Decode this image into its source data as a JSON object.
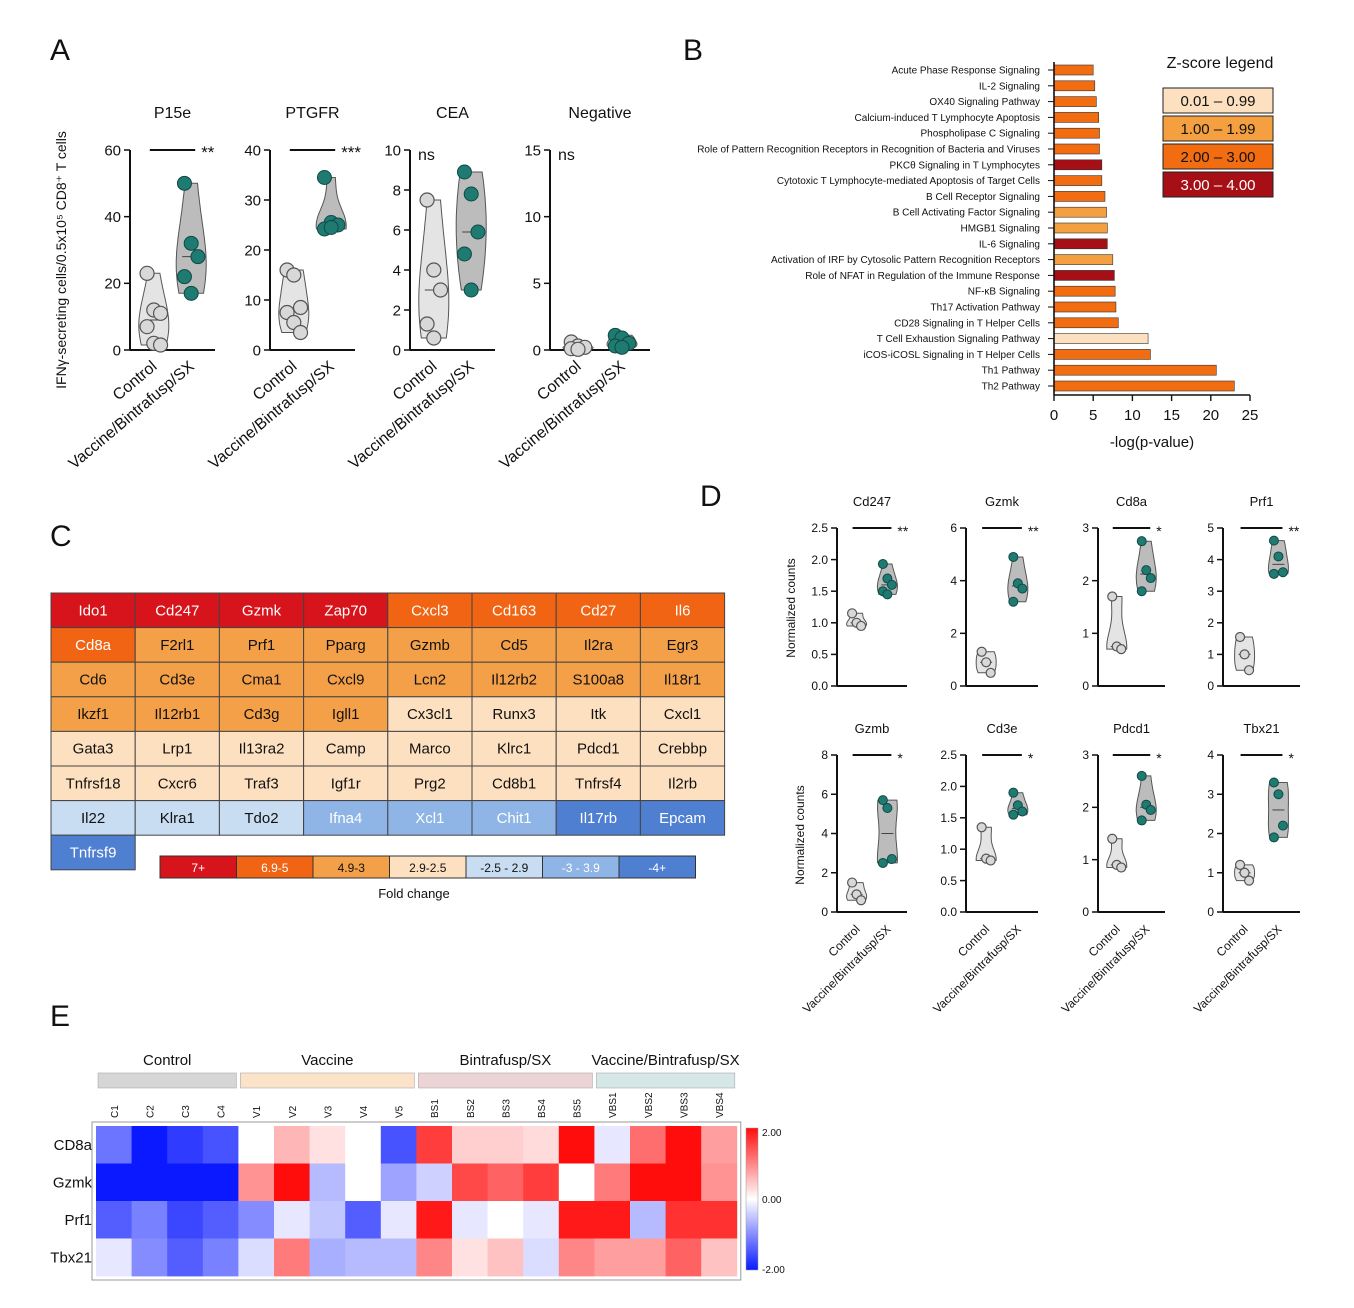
{
  "panel_labels": {
    "a": "A",
    "b": "B",
    "c": "C",
    "d": "D",
    "e": "E"
  },
  "colors": {
    "violin_control": "#e4e4e4",
    "violin_treat": "#bcbcbc",
    "dot_control": "#d8d8d8",
    "dot_treat": "#1f7a72",
    "z1": "#fde0bf",
    "z2": "#f5a040",
    "z3": "#f26c12",
    "z4": "#a50f15",
    "fc_7": "#d7141b",
    "fc_6": "#f06414",
    "fc_4": "#f4a049",
    "fc_2": "#fde0c0",
    "fc_n2": "#c8dcf2",
    "fc_n3": "#8fb4e6",
    "fc_n4": "#4f7fd0"
  },
  "chart_data": [
    {
      "id": "A",
      "type": "scatter",
      "ylabel": "IFNγ-secreting cells/0.5x10⁵ CD8⁺ T cells",
      "categories": [
        "Control",
        "Vaccine/Bintrafusp/SX"
      ],
      "subplots": [
        {
          "title": "P15e",
          "ylim": [
            0,
            60
          ],
          "ticks": [
            0,
            20,
            40,
            60
          ],
          "sig": "**",
          "control": [
            23,
            12,
            11,
            7,
            2,
            1.5
          ],
          "treat": [
            50,
            32,
            28,
            22,
            17
          ]
        },
        {
          "title": "PTGFR",
          "ylim": [
            0,
            40
          ],
          "ticks": [
            0,
            10,
            20,
            30,
            40
          ],
          "sig": "***",
          "control": [
            16,
            15,
            8.5,
            7.5,
            5.5,
            3.5
          ],
          "treat": [
            34.5,
            25.5,
            25,
            24.2,
            24.5
          ]
        },
        {
          "title": "CEA",
          "ylim": [
            0,
            10
          ],
          "ticks": [
            0,
            2,
            4,
            6,
            8,
            10
          ],
          "sig": "ns",
          "control": [
            7.5,
            4,
            3,
            1.3,
            0.6
          ],
          "treat": [
            8.9,
            7.8,
            5.9,
            4.8,
            3
          ]
        },
        {
          "title": "Negative",
          "ylim": [
            0,
            15
          ],
          "ticks": [
            0,
            5,
            10,
            15
          ],
          "sig": "ns",
          "control": [
            0.6,
            0.3,
            0.2,
            0.1,
            0.05
          ],
          "treat": [
            1.1,
            0.9,
            0.5,
            0.3,
            0.2
          ]
        }
      ]
    },
    {
      "id": "B",
      "type": "bar",
      "orientation": "horizontal",
      "xlabel": "-log(p-value)",
      "xlim": [
        0,
        25
      ],
      "ticks": [
        0,
        5,
        10,
        15,
        20,
        25
      ],
      "legend_title": "Z-score legend",
      "legend": [
        {
          "label": "0.01 – 0.99",
          "z": 1
        },
        {
          "label": "1.00 – 1.99",
          "z": 2
        },
        {
          "label": "2.00 – 3.00",
          "z": 3
        },
        {
          "label": "3.00 – 4.00",
          "z": 4
        }
      ],
      "categories": [
        "Acute Phase Response Signaling",
        "IL-2 Signaling",
        "OX40 Signaling Pathway",
        "Calcium-induced T Lymphocyte Apoptosis",
        "Phospholipase C Signaling",
        "Role of Pattern Recognition Receptors in Recognition of Bacteria and Viruses",
        "PKCθ Signaling in T Lymphocytes",
        "Cytotoxic T Lymphocyte-mediated Apoptosis of Target Cells",
        "B Cell Receptor Signaling",
        "B Cell Activating Factor Signaling",
        "HMGB1 Signaling",
        "IL-6 Signaling",
        "Activation of IRF by Cytosolic Pattern Recognition Receptors",
        "Role of NFAT in Regulation of the Immune Response",
        "NF-κB Signaling",
        "Th17 Activation Pathway",
        "CD28 Signaling in T Helper Cells",
        "T Cell Exhaustion Signaling Pathway",
        "iCOS-iCOSL Signaling in T Helper Cells",
        "Th1 Pathway",
        "Th2 Pathway"
      ],
      "values": [
        5.0,
        5.2,
        5.4,
        5.7,
        5.8,
        5.8,
        6.1,
        6.1,
        6.5,
        6.7,
        6.8,
        6.8,
        7.5,
        7.7,
        7.8,
        7.9,
        8.2,
        12.0,
        12.3,
        20.7,
        23.0
      ],
      "zscore": [
        3,
        3,
        3,
        3,
        3,
        3,
        4,
        3,
        3,
        2,
        2,
        4,
        2,
        4,
        3,
        3,
        3,
        1,
        3,
        3,
        3
      ]
    },
    {
      "id": "C",
      "type": "table",
      "caption": "Fold change",
      "rows": [
        [
          [
            "Ido1",
            7
          ],
          [
            "Cd247",
            7
          ],
          [
            "Gzmk",
            7
          ],
          [
            "Zap70",
            7
          ],
          [
            "Cxcl3",
            6
          ],
          [
            "Cd163",
            6
          ],
          [
            "Cd27",
            6
          ],
          [
            "Il6",
            6
          ]
        ],
        [
          [
            "Cd8a",
            6
          ],
          [
            "F2rl1",
            4
          ],
          [
            "Prf1",
            4
          ],
          [
            "Pparg",
            4
          ],
          [
            "Gzmb",
            4
          ],
          [
            "Cd5",
            4
          ],
          [
            "Il2ra",
            4
          ],
          [
            "Egr3",
            4
          ]
        ],
        [
          [
            "Cd6",
            4
          ],
          [
            "Cd3e",
            4
          ],
          [
            "Cma1",
            4
          ],
          [
            "Cxcl9",
            4
          ],
          [
            "Lcn2",
            4
          ],
          [
            "Il12rb2",
            4
          ],
          [
            "S100a8",
            4
          ],
          [
            "Il18r1",
            4
          ]
        ],
        [
          [
            "Ikzf1",
            4
          ],
          [
            "Il12rb1",
            4
          ],
          [
            "Cd3g",
            4
          ],
          [
            "Igll1",
            4
          ],
          [
            "Cx3cl1",
            2
          ],
          [
            "Runx3",
            2
          ],
          [
            "Itk",
            2
          ],
          [
            "Cxcl1",
            2
          ]
        ],
        [
          [
            "Gata3",
            2
          ],
          [
            "Lrp1",
            2
          ],
          [
            "Il13ra2",
            2
          ],
          [
            "Camp",
            2
          ],
          [
            "Marco",
            2
          ],
          [
            "Klrc1",
            2
          ],
          [
            "Pdcd1",
            2
          ],
          [
            "Crebbp",
            2
          ]
        ],
        [
          [
            "Tnfrsf18",
            2
          ],
          [
            "Cxcr6",
            2
          ],
          [
            "Traf3",
            2
          ],
          [
            "Igf1r",
            2
          ],
          [
            "Prg2",
            2
          ],
          [
            "Cd8b1",
            2
          ],
          [
            "Tnfrsf4",
            2
          ],
          [
            "Il2rb",
            2
          ]
        ],
        [
          [
            "Il22",
            -2
          ],
          [
            "Klra1",
            -2
          ],
          [
            "Tdo2",
            -2
          ],
          [
            "Ifna4",
            -3
          ],
          [
            "Xcl1",
            -3
          ],
          [
            "Chit1",
            -3
          ],
          [
            "Il17rb",
            -4
          ],
          [
            "Epcam",
            -4
          ]
        ],
        [
          [
            "Tnfrsf9",
            -4
          ]
        ]
      ],
      "legend": [
        {
          "label": "7+",
          "k": 7
        },
        {
          "label": "6.9-5",
          "k": 6
        },
        {
          "label": "4.9-3",
          "k": 4
        },
        {
          "label": "2.9-2.5",
          "k": 2
        },
        {
          "label": "-2.5 - 2.9",
          "k": -2
        },
        {
          "label": "-3 - 3.9",
          "k": -3
        },
        {
          "label": "-4+",
          "k": -4
        }
      ]
    },
    {
      "id": "D",
      "type": "scatter",
      "ylabel": "Normalized counts",
      "categories": [
        "Control",
        "Vaccine/Bintrafusp/SX"
      ],
      "subplots": [
        {
          "title": "Cd247",
          "ylim": [
            0,
            2.5
          ],
          "ticks": [
            0.0,
            0.5,
            1.0,
            1.5,
            2.0,
            2.5
          ],
          "tickfmt": 1,
          "sig": "**",
          "control": [
            1.15,
            1.0,
            0.95
          ],
          "treat": [
            1.93,
            1.7,
            1.6,
            1.5,
            1.45
          ]
        },
        {
          "title": "Gzmk",
          "ylim": [
            0,
            6
          ],
          "ticks": [
            0,
            2,
            4,
            6
          ],
          "tickfmt": 0,
          "sig": "**",
          "control": [
            1.3,
            0.9,
            0.5
          ],
          "treat": [
            4.9,
            3.9,
            3.7,
            3.2
          ]
        },
        {
          "title": "Cd8a",
          "ylim": [
            0,
            3
          ],
          "ticks": [
            0,
            1,
            2,
            3
          ],
          "tickfmt": 0,
          "sig": "*",
          "control": [
            1.7,
            0.75,
            0.7
          ],
          "treat": [
            2.75,
            2.2,
            2.05,
            1.8
          ]
        },
        {
          "title": "Prf1",
          "ylim": [
            0,
            5
          ],
          "ticks": [
            0,
            1,
            2,
            3,
            4,
            5
          ],
          "tickfmt": 0,
          "sig": "**",
          "control": [
            1.55,
            1.0,
            0.5
          ],
          "treat": [
            4.6,
            4.1,
            3.6,
            3.55
          ]
        },
        {
          "title": "Gzmb",
          "ylim": [
            0,
            8
          ],
          "ticks": [
            0,
            2,
            4,
            6,
            8
          ],
          "tickfmt": 0,
          "sig": "*",
          "control": [
            1.5,
            0.9,
            0.6
          ],
          "treat": [
            5.7,
            5.3,
            2.7,
            2.5
          ]
        },
        {
          "title": "Cd3e",
          "ylim": [
            0,
            2.5
          ],
          "ticks": [
            0.0,
            0.5,
            1.0,
            1.5,
            2.0,
            2.5
          ],
          "tickfmt": 1,
          "sig": "*",
          "control": [
            1.35,
            0.85,
            0.82
          ],
          "treat": [
            1.9,
            1.7,
            1.6,
            1.55
          ]
        },
        {
          "title": "Pdcd1",
          "ylim": [
            0,
            3
          ],
          "ticks": [
            0,
            1,
            2,
            3
          ],
          "tickfmt": 0,
          "sig": "*",
          "control": [
            1.4,
            0.9,
            0.85
          ],
          "treat": [
            2.6,
            2.05,
            1.95,
            1.75
          ]
        },
        {
          "title": "Tbx21",
          "ylim": [
            0,
            4
          ],
          "ticks": [
            0,
            1,
            2,
            3,
            4
          ],
          "tickfmt": 0,
          "sig": "*",
          "control": [
            1.2,
            1.0,
            0.8
          ],
          "treat": [
            3.3,
            3.0,
            2.2,
            1.9
          ]
        }
      ]
    },
    {
      "id": "E",
      "type": "heatmap",
      "scale": [
        -2,
        2
      ],
      "scale_labels": [
        "2.00",
        "0.00",
        "-2.00"
      ],
      "groups": [
        {
          "name": "Control",
          "n": 4,
          "color": "#d6d6d6"
        },
        {
          "name": "Vaccine",
          "n": 5,
          "color": "#fbe3c9"
        },
        {
          "name": "Bintrafusp/SX",
          "n": 5,
          "color": "#ecd3d6"
        },
        {
          "name": "Vaccine/Bintrafusp/SX",
          "n": 4,
          "color": "#d5e7e7"
        }
      ],
      "columns": [
        "C1",
        "C2",
        "C3",
        "C4",
        "V1",
        "V2",
        "V3",
        "V4",
        "V5",
        "BS1",
        "BS2",
        "BS3",
        "BS4",
        "BS5",
        "VBS1",
        "VBS2",
        "VBS3",
        "VBS4"
      ],
      "rows": [
        "CD8a",
        "Gzmk",
        "Prf1",
        "Tbx21"
      ],
      "values": [
        [
          -1.2,
          -2.0,
          -1.7,
          -1.5,
          0.0,
          0.6,
          0.25,
          0.0,
          -1.5,
          1.6,
          0.4,
          0.4,
          0.3,
          2.0,
          -0.2,
          1.2,
          2.0,
          0.8
        ],
        [
          -2.0,
          -2.0,
          -2.0,
          -2.0,
          0.9,
          2.0,
          -0.6,
          0.0,
          -0.8,
          -0.4,
          1.5,
          1.3,
          1.6,
          0.0,
          1.1,
          2.0,
          2.0,
          0.9
        ],
        [
          -1.4,
          -1.1,
          -1.6,
          -1.4,
          -1.0,
          -0.2,
          -0.5,
          -1.4,
          -0.2,
          1.9,
          -0.2,
          0.0,
          -0.2,
          1.9,
          1.9,
          -0.6,
          1.7,
          1.7
        ],
        [
          -0.2,
          -1.0,
          -1.4,
          -1.1,
          -0.3,
          1.1,
          -0.7,
          -0.6,
          -0.6,
          1.0,
          0.25,
          0.5,
          -0.3,
          1.0,
          0.8,
          0.8,
          1.3,
          0.5
        ]
      ]
    }
  ]
}
